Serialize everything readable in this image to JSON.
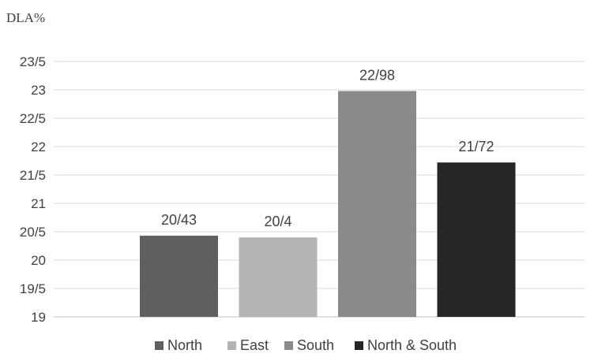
{
  "chart_data": {
    "type": "bar",
    "ylabel": "DLA%",
    "xlabel": "",
    "title": "",
    "ylim": [
      19,
      23.5
    ],
    "ytick_values": [
      19,
      19.5,
      20,
      20.5,
      21,
      21.5,
      22,
      22.5,
      23,
      23.5
    ],
    "ytick_labels": [
      "19",
      "19/5",
      "20",
      "20/5",
      "21",
      "21/5",
      "22",
      "22/5",
      "23",
      "23/5"
    ],
    "grid": true,
    "legend_position": "bottom",
    "series": [
      {
        "name": "North",
        "value": 20.43,
        "label": "20/43",
        "color": "#5f5f5f"
      },
      {
        "name": "East",
        "value": 20.4,
        "label": "20/4",
        "color": "#b3b3b3"
      },
      {
        "name": "South",
        "value": 22.98,
        "label": "22/98",
        "color": "#8a8a8a"
      },
      {
        "name": "North & South",
        "value": 21.72,
        "label": "21/72",
        "color": "#262626"
      }
    ]
  }
}
